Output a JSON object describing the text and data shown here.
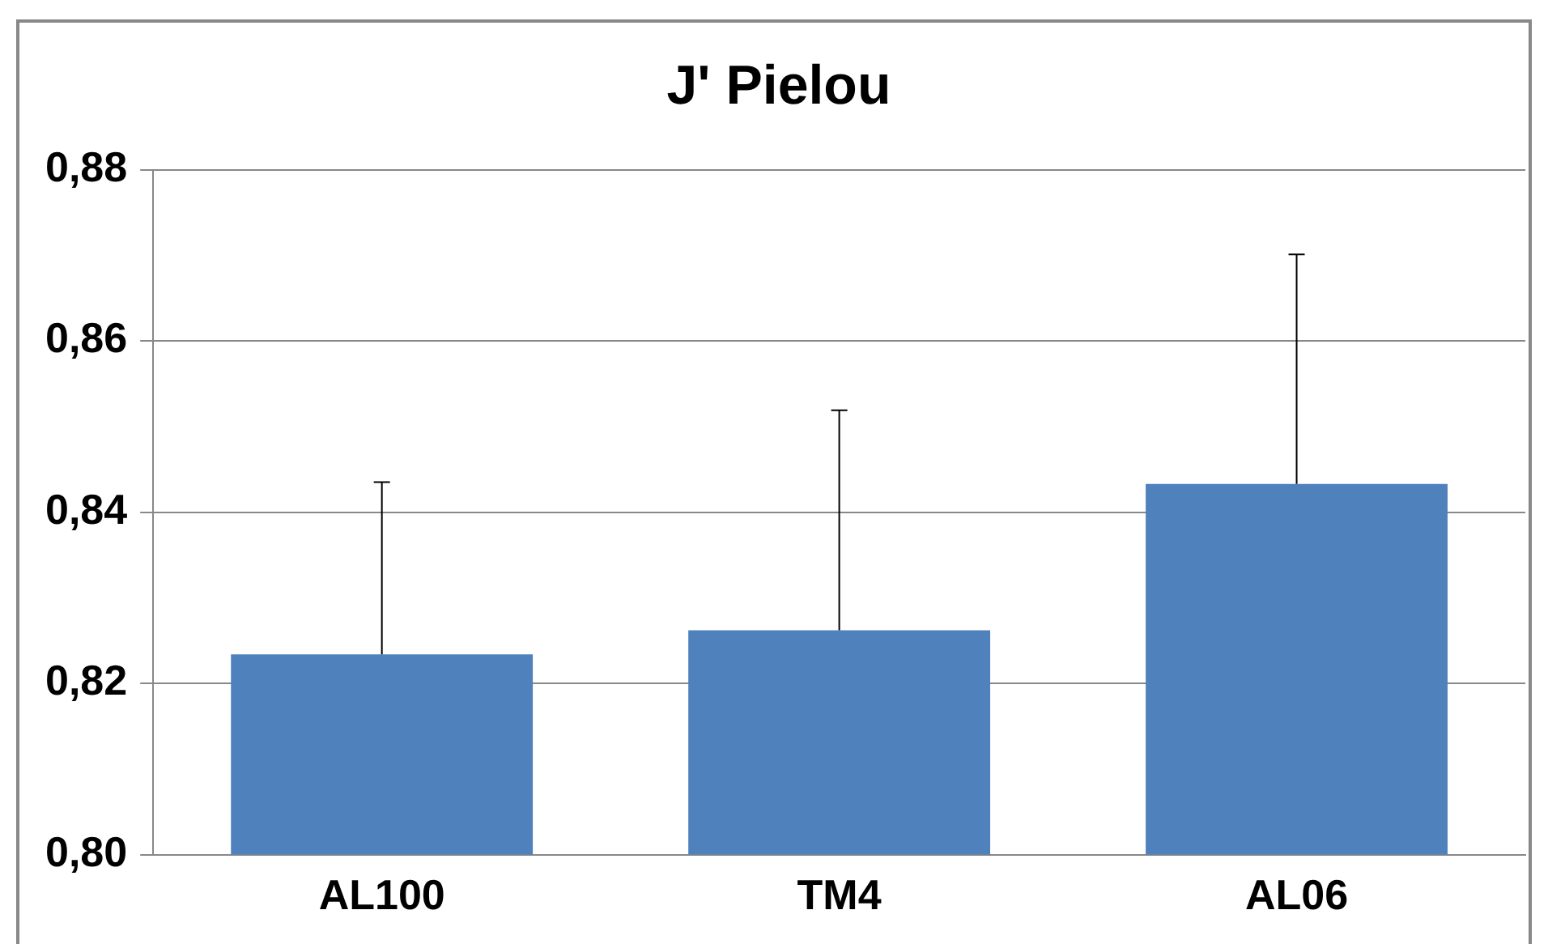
{
  "chart_data": {
    "type": "bar",
    "title": "J' Pielou",
    "categories": [
      "AL100",
      "TM4",
      "AL06"
    ],
    "values": [
      0.8234,
      0.8262,
      0.8433
    ],
    "errors": [
      [
        0.8234,
        0.8435
      ],
      [
        0.8262,
        0.8519
      ],
      [
        0.8433,
        0.8701
      ]
    ],
    "color": "#4f81bd",
    "ylim": [
      0.8,
      0.88
    ],
    "yticks": [
      {
        "value": 0.8,
        "label": "0,80"
      },
      {
        "value": 0.82,
        "label": "0,82"
      },
      {
        "value": 0.84,
        "label": "0,84"
      },
      {
        "value": 0.86,
        "label": "0,86"
      },
      {
        "value": 0.88,
        "label": "0,88"
      }
    ],
    "grid": "y",
    "legend": false
  }
}
